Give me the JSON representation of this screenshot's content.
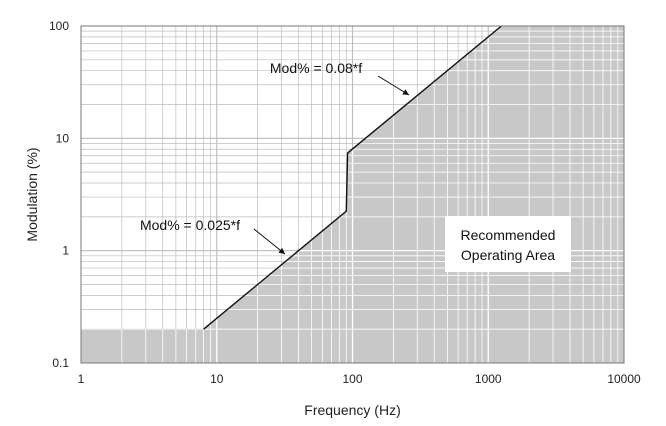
{
  "chart_data": {
    "type": "area",
    "xlabel": "Frequency (Hz)",
    "ylabel": "Modulation (%)",
    "x_scale": "log",
    "y_scale": "log",
    "xlim": [
      1,
      10000
    ],
    "ylim": [
      0.1,
      100
    ],
    "grid": true,
    "x_ticks": [
      "1",
      "10",
      "100",
      "1000",
      "10000"
    ],
    "y_ticks": [
      "0.1",
      "1",
      "10",
      "100"
    ],
    "series": [
      {
        "name": "Recommended Operating Area",
        "x": [
          1,
          8,
          90,
          92,
          1250,
          10000
        ],
        "y": [
          0.2,
          0.2,
          2.25,
          7.4,
          100,
          100
        ]
      }
    ],
    "fill_color": "#c8c8c8",
    "boundary_color": "#111111",
    "annotations": [
      {
        "text": "Mod% = 0.08*f"
      },
      {
        "text": "Mod% = 0.025*f"
      },
      {
        "text": "Recommended Operating Area",
        "lines": [
          "Recommended",
          "Operating Area"
        ]
      }
    ]
  }
}
